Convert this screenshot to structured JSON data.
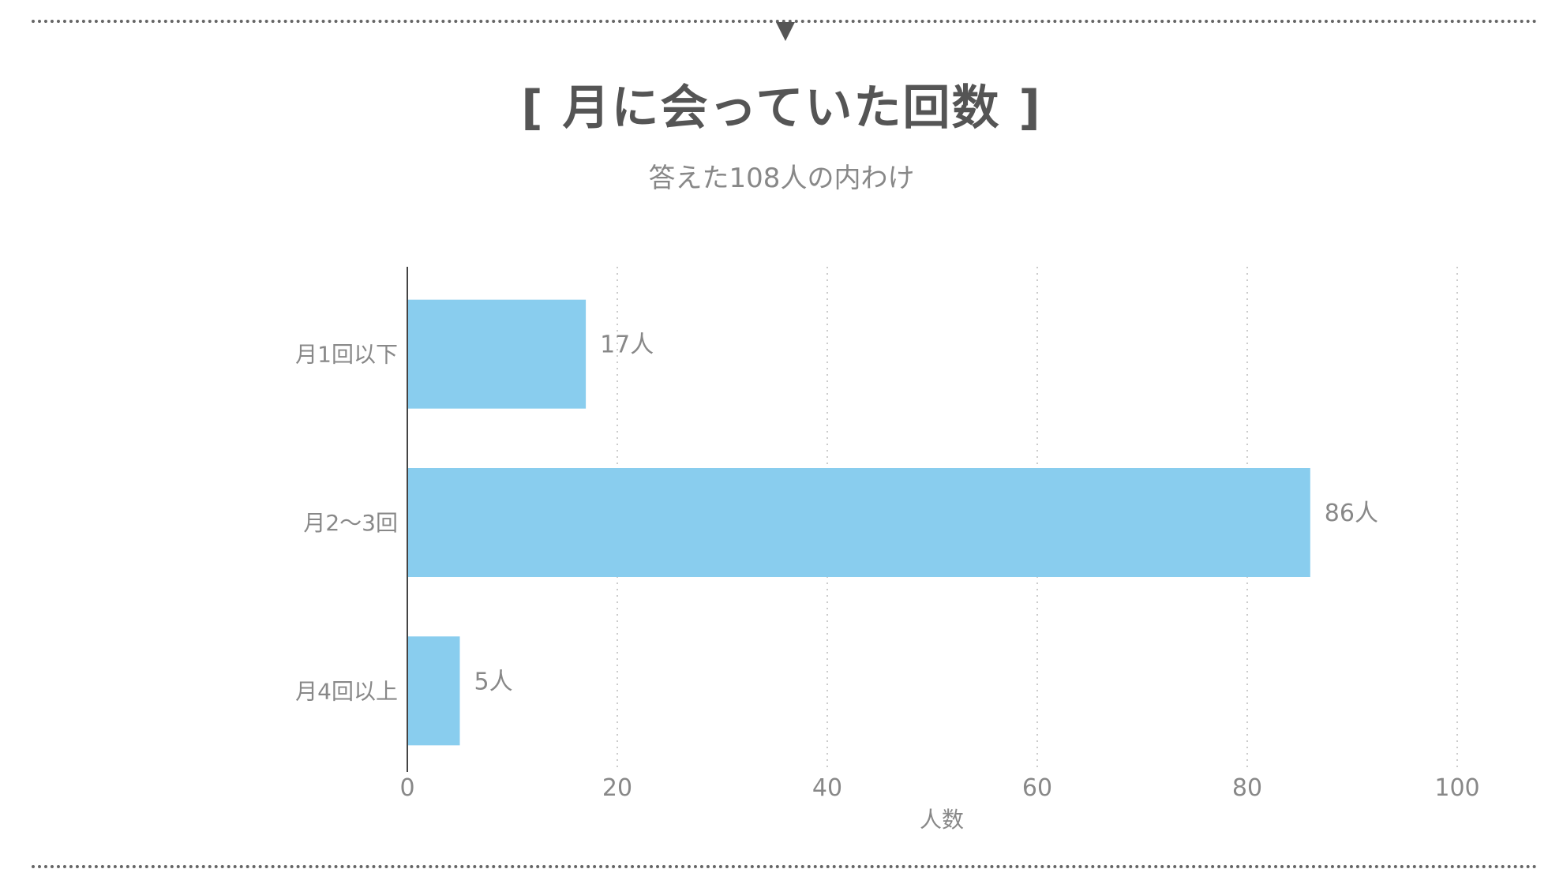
{
  "chart_data": {
    "type": "bar",
    "orientation": "horizontal",
    "title": "[ 月に会っていた回数 ]",
    "subtitle": "答えた108人の内わけ",
    "categories": [
      "月1回以下",
      "月2〜3回",
      "月4回以上"
    ],
    "values": [
      17,
      86,
      5
    ],
    "value_labels": [
      "17人",
      "86人",
      "5人"
    ],
    "xlabel": "人数",
    "xlim": [
      0,
      100
    ],
    "xticks": [
      0,
      20,
      40,
      60,
      80,
      100
    ],
    "grid": true,
    "bar_color": "#89CDEE"
  }
}
